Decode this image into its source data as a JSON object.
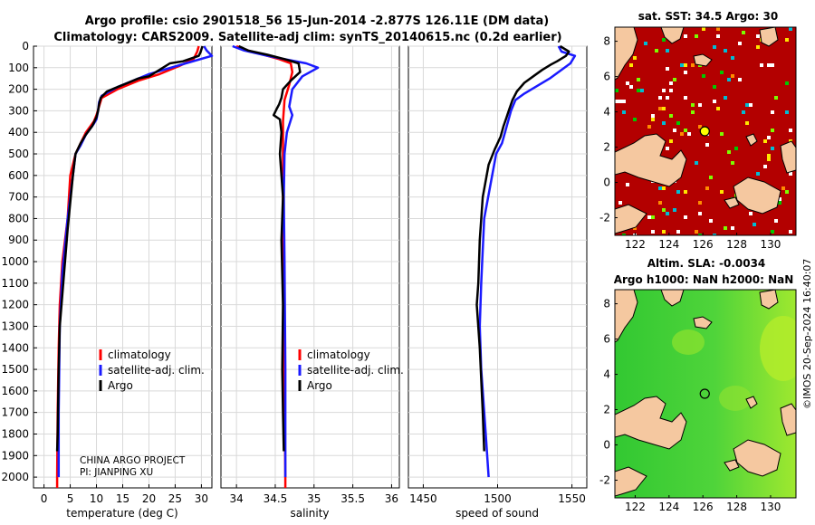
{
  "header": {
    "line1": "Argo profile: csio 2901518_56 15-Jun-2014 -2.877S 126.11E (DM data)",
    "line2": "Climatology: CARS2009. Satellite-adj clim: synTS_20140615.nc (0.2d earlier)"
  },
  "colors": {
    "climatology": "#ff0000",
    "satellite": "#1a1aff",
    "argo": "#000000",
    "land": "#f5c8a0",
    "sst_bg": "#b30000",
    "sla_bg": "#35c935"
  },
  "legend": {
    "items": [
      "climatology",
      "satellite-adj. clim.",
      "Argo"
    ]
  },
  "credits": {
    "line1": "CHINA ARGO PROJECT",
    "line2": "PI: JIANPING XU"
  },
  "timestamp": "©IMOS 20-Sep-2024 16:40:07",
  "chart_data": [
    {
      "type": "line",
      "id": "temperature",
      "xlabel": "temperature (deg C)",
      "ylabel": "",
      "xlim": [
        -2,
        32
      ],
      "ylim": [
        2050,
        0
      ],
      "xticks": [
        0,
        5,
        10,
        15,
        20,
        25,
        30
      ],
      "yticks": [
        0,
        100,
        200,
        300,
        400,
        500,
        600,
        700,
        800,
        900,
        1000,
        1100,
        1200,
        1300,
        1400,
        1500,
        1600,
        1700,
        1800,
        1900,
        2000
      ],
      "grid": true,
      "series": [
        {
          "name": "climatology",
          "x": [
            29.5,
            29.2,
            28.5,
            26,
            22,
            18,
            14,
            11,
            10.5,
            10,
            9.5,
            8,
            7,
            6,
            5,
            4.5,
            3.5,
            3,
            2.8,
            2.6,
            2.5,
            2.5
          ],
          "y": [
            0,
            25,
            60,
            90,
            130,
            160,
            200,
            240,
            280,
            320,
            350,
            400,
            450,
            500,
            600,
            800,
            1000,
            1200,
            1400,
            1700,
            2000,
            2050
          ]
        },
        {
          "name": "satellite-adj. clim.",
          "x": [
            30.5,
            31,
            32,
            27,
            20,
            14,
            11,
            10.5,
            10.3,
            10,
            9.5,
            8,
            7,
            6,
            4.5,
            3.5,
            3,
            2.9,
            2.8,
            2.8
          ],
          "y": [
            0,
            20,
            45,
            80,
            130,
            190,
            230,
            260,
            300,
            340,
            360,
            410,
            460,
            500,
            800,
            1050,
            1300,
            1500,
            1700,
            2000
          ]
        },
        {
          "name": "Argo",
          "x": [
            30.2,
            30,
            29.8,
            29.5,
            26.5,
            24,
            22,
            20,
            18,
            16,
            14,
            12,
            10.8,
            10.5,
            10.3,
            10,
            9.2,
            8,
            7,
            6,
            5.5,
            4.5,
            4,
            3.5,
            3,
            2.8,
            2.6,
            2.5
          ],
          "y": [
            0,
            15,
            30,
            45,
            70,
            80,
            110,
            140,
            150,
            170,
            190,
            210,
            240,
            270,
            300,
            330,
            370,
            410,
            450,
            500,
            600,
            850,
            1000,
            1150,
            1300,
            1500,
            1800,
            1880
          ]
        }
      ]
    },
    {
      "type": "line",
      "id": "salinity",
      "xlabel": "salinity",
      "ylabel": "",
      "xlim": [
        33.8,
        36.1
      ],
      "ylim": [
        2050,
        0
      ],
      "xticks": [
        34,
        34.5,
        35,
        35.5,
        36
      ],
      "yticks": [
        0,
        100,
        200,
        300,
        400,
        500,
        600,
        700,
        800,
        900,
        1000,
        1100,
        1200,
        1300,
        1400,
        1500,
        1600,
        1700,
        1800,
        1900,
        2000
      ],
      "grid": true,
      "series": [
        {
          "name": "climatology",
          "x": [
            34.0,
            34.15,
            34.35,
            34.55,
            34.7,
            34.72,
            34.68,
            34.62,
            34.6,
            34.6,
            34.6,
            34.61,
            34.62,
            34.63,
            34.63
          ],
          "y": [
            0,
            20,
            40,
            60,
            80,
            120,
            180,
            250,
            350,
            500,
            800,
            1200,
            1600,
            2000,
            2050
          ]
        },
        {
          "name": "satellite-adj. clim.",
          "x": [
            33.95,
            34.1,
            34.4,
            34.9,
            35.05,
            34.85,
            34.72,
            34.7,
            34.68,
            34.72,
            34.65,
            34.62,
            34.61,
            34.62,
            34.63,
            34.63
          ],
          "y": [
            0,
            20,
            45,
            80,
            100,
            140,
            200,
            240,
            280,
            320,
            400,
            500,
            700,
            1000,
            1500,
            2000
          ]
        },
        {
          "name": "Argo",
          "x": [
            34.03,
            34.15,
            34.4,
            34.62,
            34.8,
            34.82,
            34.7,
            34.6,
            34.58,
            34.55,
            34.52,
            34.48,
            34.56,
            34.58,
            34.56,
            34.6,
            34.58,
            34.6,
            34.59,
            34.6,
            34.61
          ],
          "y": [
            0,
            20,
            40,
            60,
            80,
            120,
            160,
            200,
            240,
            270,
            290,
            320,
            340,
            400,
            500,
            700,
            900,
            1200,
            1500,
            1700,
            1880
          ]
        }
      ]
    },
    {
      "type": "line",
      "id": "sound-speed",
      "xlabel": "speed of sound",
      "ylabel": "",
      "xlim": [
        1440,
        1560
      ],
      "ylim": [
        2050,
        0
      ],
      "xticks": [
        1450,
        1500,
        1550
      ],
      "yticks": [
        0,
        100,
        200,
        300,
        400,
        500,
        600,
        700,
        800,
        900,
        1000,
        1100,
        1200,
        1300,
        1400,
        1500,
        1600,
        1700,
        1800,
        1900,
        2000
      ],
      "grid": true,
      "series": [
        {
          "name": "satellite-adj. clim.",
          "x": [
            1541,
            1543,
            1552,
            1549,
            1535,
            1518,
            1512,
            1509,
            1507,
            1505,
            1503,
            1499,
            1491,
            1489,
            1488,
            1489,
            1492,
            1494
          ],
          "y": [
            0,
            25,
            45,
            80,
            150,
            220,
            250,
            300,
            350,
            400,
            450,
            500,
            800,
            1100,
            1300,
            1500,
            1800,
            2000
          ]
        },
        {
          "name": "Argo",
          "x": [
            1542,
            1548,
            1546,
            1540,
            1536,
            1530,
            1524,
            1518,
            1513,
            1510,
            1508,
            1506,
            1504,
            1502,
            1498,
            1494,
            1490,
            1488,
            1487,
            1486,
            1488,
            1490,
            1491
          ],
          "y": [
            0,
            25,
            45,
            70,
            85,
            110,
            140,
            170,
            210,
            250,
            290,
            330,
            370,
            420,
            480,
            550,
            700,
            900,
            1100,
            1200,
            1400,
            1700,
            1880
          ]
        }
      ]
    }
  ],
  "maps": {
    "sst": {
      "title": "sat. SST: 34.5 Argo: 30",
      "xticks": [
        122,
        124,
        126,
        128,
        130
      ],
      "yticks": [
        -2,
        0,
        2,
        4,
        6,
        8
      ],
      "xlim": [
        120.8,
        131.5
      ],
      "ylim": [
        -3,
        8.8
      ],
      "marker": {
        "lon": 126.11,
        "lat": 2.9,
        "color": "#ffff00"
      }
    },
    "sla": {
      "title1": "Altim. SLA: -0.0034",
      "title2": "Argo h1000: NaN h2000: NaN",
      "xticks": [
        122,
        124,
        126,
        128,
        130
      ],
      "yticks": [
        -2,
        0,
        2,
        4,
        6,
        8
      ],
      "xlim": [
        120.8,
        131.5
      ],
      "ylim": [
        -3,
        8.8
      ],
      "marker": {
        "lon": 126.11,
        "lat": 2.9,
        "color": "none"
      }
    }
  }
}
